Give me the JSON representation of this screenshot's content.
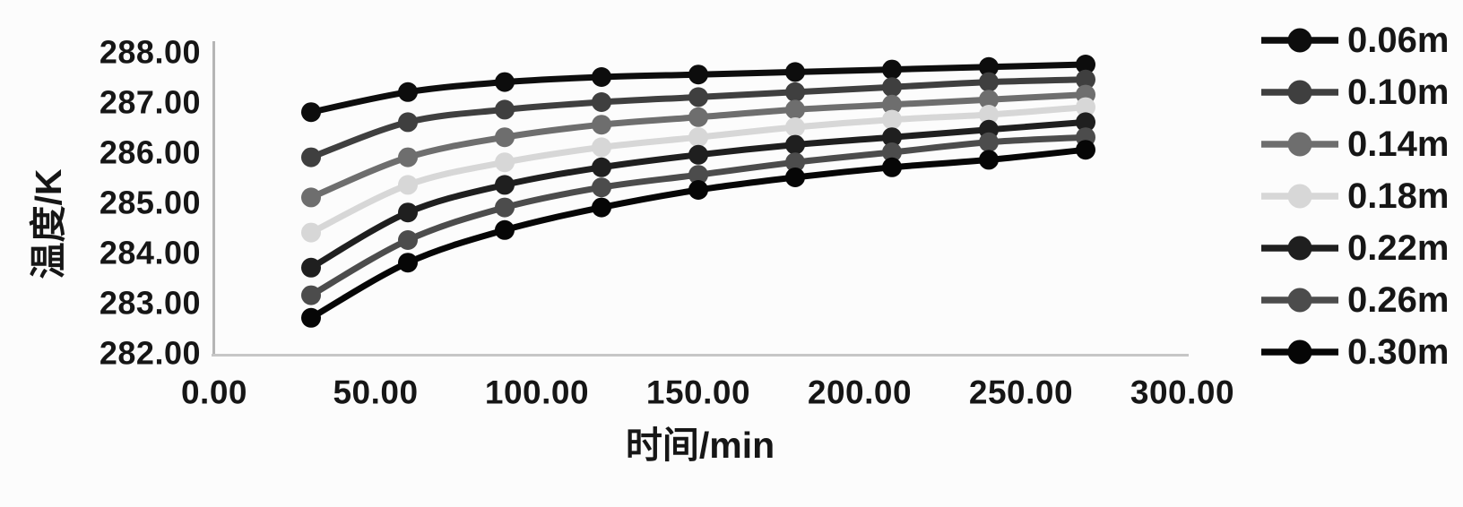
{
  "figure": {
    "background": "#fcfcfc",
    "axis_line_color": "#b5b5b5",
    "text_color": "#161616"
  },
  "chart_data": {
    "type": "line",
    "title": "",
    "xlabel": "时间/min",
    "ylabel": "温度/K",
    "xlim": [
      0,
      300
    ],
    "ylim": [
      282,
      288
    ],
    "grid": false,
    "legend_position": "right",
    "x_tick_labels": [
      "0.00",
      "50.00",
      "100.00",
      "150.00",
      "200.00",
      "250.00",
      "300.00"
    ],
    "y_tick_labels": [
      "288.00",
      "287.00",
      "286.00",
      "285.00",
      "284.00",
      "283.00",
      "282.00"
    ],
    "x": [
      30,
      60,
      90,
      120,
      150,
      180,
      210,
      240,
      270
    ],
    "series": [
      {
        "name": "0.06m",
        "color": "#0d0d0d",
        "values": [
          286.8,
          287.2,
          287.4,
          287.5,
          287.55,
          287.6,
          287.65,
          287.7,
          287.75
        ]
      },
      {
        "name": "0.10m",
        "color": "#3f3f3f",
        "values": [
          285.9,
          286.6,
          286.85,
          287.0,
          287.1,
          287.2,
          287.3,
          287.4,
          287.45
        ]
      },
      {
        "name": "0.14m",
        "color": "#6e6e6e",
        "values": [
          285.1,
          285.9,
          286.3,
          286.55,
          286.7,
          286.85,
          286.95,
          287.05,
          287.15
        ]
      },
      {
        "name": "0.18m",
        "color": "#d7d7d7",
        "values": [
          284.4,
          285.35,
          285.8,
          286.1,
          286.3,
          286.5,
          286.65,
          286.75,
          286.9
        ]
      },
      {
        "name": "0.22m",
        "color": "#1f1f1f",
        "values": [
          283.7,
          284.8,
          285.35,
          285.7,
          285.95,
          286.15,
          286.3,
          286.45,
          286.6
        ]
      },
      {
        "name": "0.26m",
        "color": "#4c4c4c",
        "values": [
          283.15,
          284.25,
          284.9,
          285.3,
          285.55,
          285.8,
          286.0,
          286.2,
          286.3
        ]
      },
      {
        "name": "0.30m",
        "color": "#060606",
        "values": [
          282.7,
          283.8,
          284.45,
          284.9,
          285.25,
          285.5,
          285.7,
          285.85,
          286.05
        ]
      }
    ]
  }
}
